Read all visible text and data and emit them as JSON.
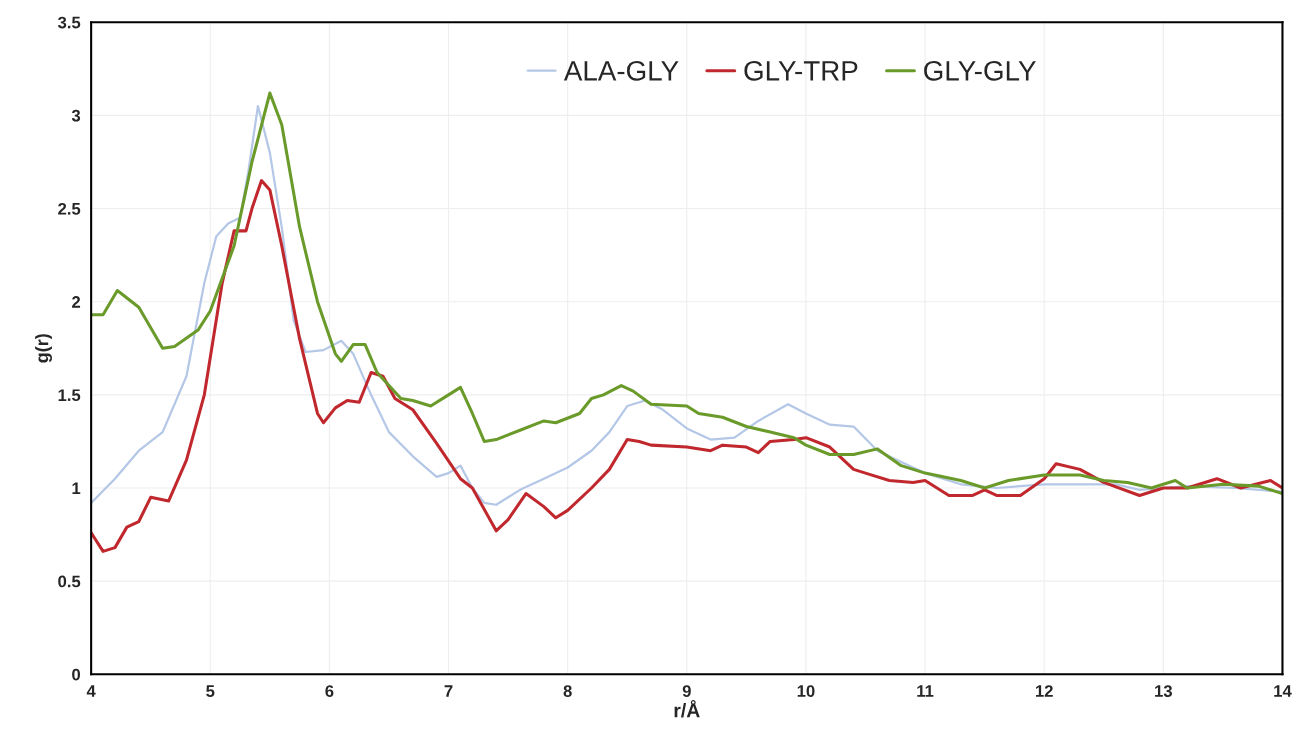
{
  "chart_data": {
    "type": "line",
    "xlabel": "r/Å",
    "ylabel": "g(r)",
    "xlim": [
      4,
      14
    ],
    "xticks": [
      4,
      5,
      6,
      7,
      8,
      9,
      10,
      11,
      12,
      13,
      14
    ],
    "ylim": [
      0,
      3.5
    ],
    "yticks": [
      0,
      0.5,
      1,
      1.5,
      2,
      2.5,
      3,
      3.5
    ],
    "grid": true,
    "legend": "top",
    "marker": "none",
    "line_style": "solid",
    "series": [
      {
        "name": "ALA-GLY",
        "color": "#b4c7e7",
        "x": [
          4.0,
          4.2,
          4.4,
          4.6,
          4.8,
          4.95,
          5.05,
          5.15,
          5.25,
          5.32,
          5.4,
          5.5,
          5.6,
          5.7,
          5.8,
          5.95,
          6.1,
          6.2,
          6.35,
          6.5,
          6.7,
          6.9,
          7.0,
          7.1,
          7.2,
          7.3,
          7.4,
          7.6,
          7.8,
          8.0,
          8.2,
          8.35,
          8.5,
          8.65,
          8.8,
          9.0,
          9.2,
          9.4,
          9.6,
          9.85,
          10.0,
          10.2,
          10.4,
          10.6,
          10.8,
          11.0,
          11.3,
          11.6,
          12.0,
          12.3,
          12.6,
          12.8,
          13.2,
          13.6,
          14.0
        ],
        "values": [
          0.92,
          1.05,
          1.2,
          1.3,
          1.6,
          2.1,
          2.35,
          2.42,
          2.45,
          2.7,
          3.05,
          2.8,
          2.4,
          1.9,
          1.73,
          1.74,
          1.79,
          1.72,
          1.5,
          1.3,
          1.17,
          1.06,
          1.08,
          1.12,
          1.0,
          0.92,
          0.91,
          0.99,
          1.05,
          1.11,
          1.2,
          1.3,
          1.44,
          1.47,
          1.42,
          1.32,
          1.26,
          1.27,
          1.36,
          1.45,
          1.4,
          1.34,
          1.33,
          1.2,
          1.14,
          1.08,
          1.02,
          1.0,
          1.02,
          1.02,
          1.02,
          0.99,
          1.01,
          1.0,
          0.98
        ]
      },
      {
        "name": "GLY-TRP",
        "color": "#c0282d",
        "x": [
          4.0,
          4.1,
          4.2,
          4.3,
          4.4,
          4.5,
          4.65,
          4.8,
          4.95,
          5.1,
          5.2,
          5.3,
          5.35,
          5.43,
          5.5,
          5.6,
          5.75,
          5.9,
          5.95,
          6.05,
          6.15,
          6.25,
          6.35,
          6.45,
          6.55,
          6.7,
          6.9,
          7.1,
          7.2,
          7.4,
          7.5,
          7.65,
          7.8,
          7.9,
          8.0,
          8.2,
          8.35,
          8.5,
          8.6,
          8.7,
          9.0,
          9.2,
          9.3,
          9.5,
          9.6,
          9.7,
          9.9,
          10.0,
          10.2,
          10.4,
          10.5,
          10.7,
          10.9,
          11.0,
          11.2,
          11.4,
          11.5,
          11.6,
          11.8,
          12.0,
          12.1,
          12.3,
          12.5,
          12.8,
          13.0,
          13.2,
          13.45,
          13.65,
          13.9,
          14.0
        ],
        "values": [
          0.76,
          0.66,
          0.68,
          0.79,
          0.82,
          0.95,
          0.93,
          1.15,
          1.5,
          2.1,
          2.38,
          2.38,
          2.5,
          2.65,
          2.6,
          2.3,
          1.8,
          1.4,
          1.35,
          1.43,
          1.47,
          1.46,
          1.62,
          1.6,
          1.48,
          1.42,
          1.24,
          1.05,
          1.0,
          0.77,
          0.83,
          0.97,
          0.9,
          0.84,
          0.88,
          1.0,
          1.1,
          1.26,
          1.25,
          1.23,
          1.22,
          1.2,
          1.23,
          1.22,
          1.19,
          1.25,
          1.26,
          1.27,
          1.22,
          1.1,
          1.08,
          1.04,
          1.03,
          1.04,
          0.96,
          0.96,
          0.99,
          0.96,
          0.96,
          1.05,
          1.13,
          1.1,
          1.03,
          0.96,
          1.0,
          1.0,
          1.05,
          1.0,
          1.04,
          1.0
        ]
      },
      {
        "name": "GLY-GLY",
        "color": "#6a9a2a",
        "x": [
          4.0,
          4.1,
          4.22,
          4.4,
          4.6,
          4.7,
          4.9,
          5.0,
          5.2,
          5.35,
          5.5,
          5.6,
          5.75,
          5.9,
          6.05,
          6.1,
          6.2,
          6.3,
          6.4,
          6.6,
          6.7,
          6.85,
          7.0,
          7.1,
          7.2,
          7.3,
          7.4,
          7.6,
          7.8,
          7.9,
          8.1,
          8.2,
          8.3,
          8.45,
          8.55,
          8.7,
          9.0,
          9.1,
          9.3,
          9.5,
          9.7,
          9.9,
          10.0,
          10.2,
          10.4,
          10.6,
          10.8,
          11.0,
          11.3,
          11.5,
          11.7,
          12.0,
          12.3,
          12.5,
          12.7,
          12.9,
          13.1,
          13.2,
          13.5,
          13.8,
          14.0
        ],
        "values": [
          1.93,
          1.93,
          2.06,
          1.97,
          1.75,
          1.76,
          1.85,
          1.95,
          2.3,
          2.75,
          3.12,
          2.95,
          2.4,
          2.0,
          1.72,
          1.68,
          1.77,
          1.77,
          1.62,
          1.48,
          1.47,
          1.44,
          1.5,
          1.54,
          1.4,
          1.25,
          1.26,
          1.31,
          1.36,
          1.35,
          1.4,
          1.48,
          1.5,
          1.55,
          1.52,
          1.45,
          1.44,
          1.4,
          1.38,
          1.33,
          1.3,
          1.27,
          1.23,
          1.18,
          1.18,
          1.21,
          1.12,
          1.08,
          1.04,
          1.0,
          1.04,
          1.07,
          1.07,
          1.04,
          1.03,
          1.0,
          1.04,
          1.0,
          1.02,
          1.01,
          0.97
        ]
      }
    ]
  }
}
